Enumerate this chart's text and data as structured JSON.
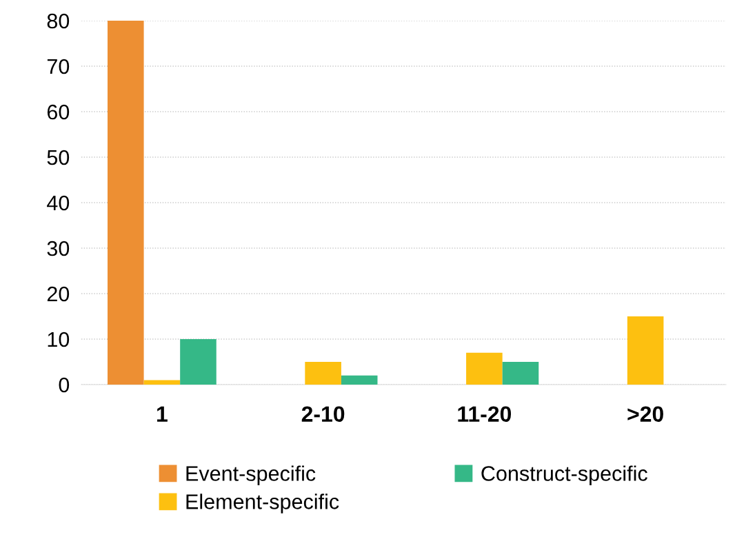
{
  "chart_data": {
    "type": "bar",
    "categories": [
      "1",
      "2-10",
      "11-20",
      ">20"
    ],
    "series": [
      {
        "name": "Event-specific",
        "color": "#ed8f33",
        "values": [
          80,
          0,
          0,
          0
        ]
      },
      {
        "name": "Element-specific",
        "color": "#fdc010",
        "values": [
          1,
          5,
          7,
          15
        ]
      },
      {
        "name": "Construct-specific",
        "color": "#35b887",
        "values": [
          10,
          2,
          5,
          0
        ]
      }
    ],
    "ylim": [
      0,
      80
    ],
    "yticks": [
      0,
      10,
      20,
      30,
      40,
      50,
      60,
      70,
      80
    ],
    "grid": "y",
    "legend": "bottom"
  }
}
